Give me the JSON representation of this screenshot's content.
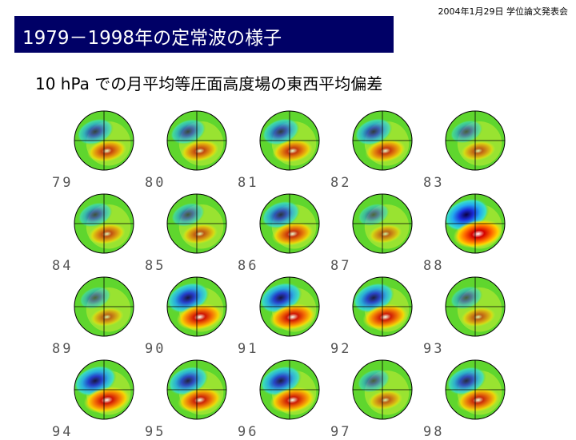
{
  "header": {
    "date": "2004年1月29日 学位論文発表会"
  },
  "slide": {
    "title": "1979－1998年の定常波の様子",
    "subtitle": "10 hPa での月平均等圧面高度場の東西平均偏差"
  },
  "maps": {
    "years": [
      "79",
      "80",
      "81",
      "82",
      "83",
      "84",
      "85",
      "86",
      "87",
      "88",
      "89",
      "90",
      "91",
      "92",
      "93",
      "94",
      "95",
      "96",
      "97",
      "98"
    ],
    "amplitude": [
      0.55,
      0.5,
      0.6,
      0.6,
      0.35,
      0.45,
      0.4,
      0.65,
      0.3,
      1.0,
      0.3,
      0.85,
      0.85,
      0.8,
      0.35,
      0.85,
      0.75,
      0.8,
      0.35,
      0.7
    ]
  },
  "colors": {
    "title_bar": "#000066",
    "title_text": "#ffffff",
    "label_text": "#555555",
    "map_base": "#5fd62e",
    "map_positive": "#ff6a00",
    "map_negative": "#1a2bd8"
  }
}
